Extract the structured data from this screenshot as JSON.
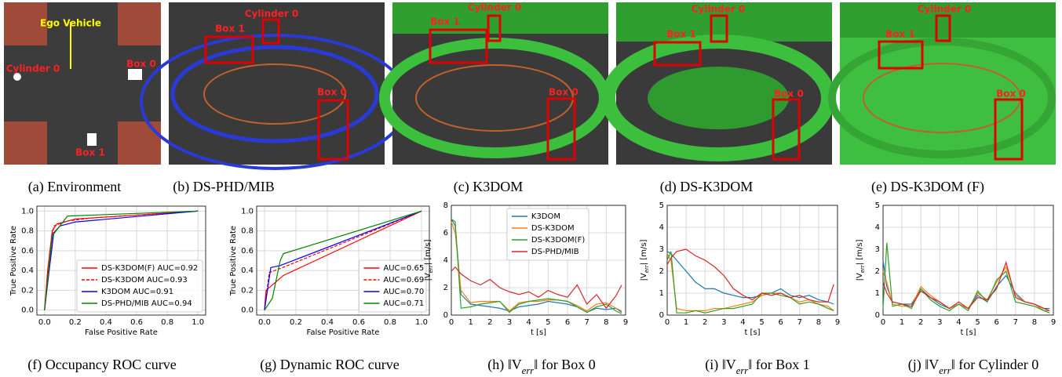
{
  "images": [
    {
      "caption": "(a) Environment",
      "labels": [
        "Ego Vehicle",
        "Box 0",
        "Cylinder 0",
        "Box 1"
      ]
    },
    {
      "caption": "(b) DS-PHD/MIB",
      "labels": [
        "Box 1",
        "Cylinder 0",
        "Box 0"
      ]
    },
    {
      "caption": "(c) K3DOM",
      "labels": [
        "Box 1",
        "Cylinder 0",
        "Box 0"
      ]
    },
    {
      "caption": "(d) DS-K3DOM",
      "labels": [
        "Box 1",
        "Cylinder 0",
        "Box 0"
      ]
    },
    {
      "caption": "(e) DS-K3DOM (F)",
      "labels": [
        "Box 1",
        "Cylinder 0",
        "Box 0"
      ]
    }
  ],
  "chart_data": [
    {
      "type": "line",
      "caption": [
        "(f) Occupancy ROC curve"
      ],
      "xlabel": "False Positive Rate",
      "ylabel": [
        "True Positive Rate"
      ],
      "xlim": [
        -0.05,
        1.05
      ],
      "ylim": [
        -0.05,
        1.05
      ],
      "xticks": [
        {
          "value": 0,
          "label": "0.0"
        },
        0.2,
        0.4,
        0.6,
        0.8,
        {
          "value": 1,
          "label": "1.0"
        }
      ],
      "yticks": [
        {
          "value": 0,
          "label": "0.0"
        },
        0.2,
        0.4,
        0.6,
        0.8,
        {
          "value": 1,
          "label": "1.0"
        }
      ],
      "grid": true,
      "legend": "lower-right",
      "series": [
        {
          "name": "DS-K3DOM(F) AUC=0.92",
          "color": "#ff0000",
          "linestyle": "solid",
          "x": [
            0,
            0.02,
            0.05,
            0.08,
            0.2,
            1
          ],
          "values": [
            0,
            0.4,
            0.8,
            0.87,
            0.92,
            1
          ]
        },
        {
          "name": "DS-K3DOM AUC=0.93",
          "color": "#ff0000",
          "linestyle": "dashed",
          "x": [
            0,
            0.03,
            0.06,
            0.15,
            0.3,
            1
          ],
          "values": [
            0,
            0.5,
            0.85,
            0.9,
            0.93,
            1
          ]
        },
        {
          "name": "K3DOM AUC=0.91",
          "color": "#0000ff",
          "linestyle": "solid",
          "x": [
            0,
            0.03,
            0.06,
            0.1,
            0.2,
            1
          ],
          "values": [
            0,
            0.4,
            0.78,
            0.85,
            0.89,
            1
          ]
        },
        {
          "name": "DS-PHD/MIB AUC=0.94",
          "color": "#008000",
          "linestyle": "solid",
          "x": [
            0,
            0.02,
            0.05,
            0.15,
            1
          ],
          "values": [
            0,
            0.3,
            0.75,
            0.95,
            1
          ]
        }
      ]
    },
    {
      "type": "line",
      "caption": [
        "(g) Dynamic ROC curve"
      ],
      "xlabel": "False Positive Rate",
      "ylabel": [
        "True Positive Rate"
      ],
      "xlim": [
        -0.05,
        1.05
      ],
      "ylim": [
        -0.05,
        1.05
      ],
      "xticks": [
        {
          "value": 0,
          "label": "0.0"
        },
        0.2,
        0.4,
        0.6,
        0.8,
        {
          "value": 1,
          "label": "1.0"
        }
      ],
      "yticks": [
        {
          "value": 0,
          "label": "0.0"
        },
        0.2,
        0.4,
        0.6,
        0.8,
        {
          "value": 1,
          "label": "1.0"
        }
      ],
      "grid": true,
      "legend": "lower-right",
      "series": [
        {
          "name": "AUC=0.65",
          "color": "#ff0000",
          "linestyle": "solid",
          "x": [
            0,
            0.01,
            0.12,
            1
          ],
          "values": [
            0,
            0.2,
            0.35,
            1
          ]
        },
        {
          "name": "AUC=0.69",
          "color": "#ff0000",
          "linestyle": "dashed",
          "x": [
            0,
            0.03,
            0.1,
            1
          ],
          "values": [
            0,
            0.38,
            0.42,
            1
          ]
        },
        {
          "name": "AUC=0.70",
          "color": "#0000ff",
          "linestyle": "solid",
          "x": [
            0,
            0.04,
            0.1,
            1
          ],
          "values": [
            0,
            0.43,
            0.45,
            1
          ]
        },
        {
          "name": "AUC=0.71",
          "color": "#008000",
          "linestyle": "solid",
          "x": [
            0,
            0.05,
            0.1,
            0.12,
            1
          ],
          "values": [
            0,
            0.12,
            0.5,
            0.57,
            1
          ]
        }
      ]
    },
    {
      "type": "line",
      "caption": [
        "(h) ‖V",
        "err",
        "‖ for Box 0"
      ],
      "xlabel": "t [s]",
      "ylabel": [
        "|V",
        "err",
        "| [m/s]"
      ],
      "xlim": [
        0,
        9
      ],
      "ylim": [
        0,
        8
      ],
      "xticks": [
        0,
        1,
        2,
        3,
        4,
        5,
        6,
        7,
        8,
        9
      ],
      "yticks": [
        0,
        2,
        4,
        6,
        8
      ],
      "grid": true,
      "legend": "upper-center",
      "x": [
        0,
        0.2,
        0.5,
        1,
        1.5,
        2,
        2.5,
        3,
        3.5,
        4,
        4.5,
        5,
        5.5,
        6,
        6.5,
        7,
        7.5,
        8,
        8.5,
        8.8
      ],
      "series": [
        {
          "name": "K3DOM",
          "color": "#1f77b4",
          "values": [
            7,
            6.5,
            1.5,
            0.8,
            0.7,
            0.6,
            0.5,
            0.3,
            0.6,
            0.7,
            0.8,
            1.0,
            0.9,
            0.8,
            0.6,
            0.2,
            0.5,
            0.4,
            0.5,
            0.2
          ]
        },
        {
          "name": "DS-K3DOM",
          "color": "#ff7f0e",
          "values": [
            6.8,
            6,
            1.8,
            0.9,
            1,
            1,
            1,
            0.3,
            0.9,
            1,
            1,
            1.1,
            1.1,
            1,
            0.7,
            0.3,
            0.8,
            0.9,
            0.5,
            0.3
          ]
        },
        {
          "name": "DS-K3DOM(F)",
          "color": "#2ca02c",
          "values": [
            7,
            6.8,
            0.5,
            0.6,
            0.8,
            0.9,
            1,
            0.2,
            0.8,
            1,
            1.1,
            1.2,
            1.1,
            1,
            0.6,
            0.2,
            0.6,
            0.8,
            0.3,
            0.1
          ]
        },
        {
          "name": "DS-PHD/MIB",
          "color": "#d62728",
          "values": [
            3.2,
            3.5,
            3,
            2.5,
            2.2,
            2.6,
            2,
            1.7,
            1.5,
            1.7,
            1.3,
            1.8,
            1.5,
            1.3,
            2.2,
            0.8,
            1.5,
            0.5,
            1.4,
            2.2
          ]
        }
      ]
    },
    {
      "type": "line",
      "caption": [
        "(i) ‖V",
        "err",
        "‖ for Box 1"
      ],
      "xlabel": "t [s]",
      "ylabel": [
        "|V",
        "err",
        "| [m/s]"
      ],
      "xlim": [
        0,
        9
      ],
      "ylim": [
        0,
        5
      ],
      "xticks": [
        0,
        1,
        2,
        3,
        4,
        5,
        6,
        7,
        8,
        9
      ],
      "yticks": [
        0,
        1,
        2,
        3,
        4,
        5
      ],
      "grid": true,
      "x": [
        0,
        0.2,
        0.5,
        1,
        1.5,
        2,
        2.5,
        3,
        3.5,
        4,
        4.5,
        5,
        5.5,
        6,
        6.5,
        7,
        7.5,
        8,
        8.5,
        8.8
      ],
      "series": [
        {
          "color": "#1f77b4",
          "values": [
            2.9,
            2.8,
            2.5,
            2.0,
            1.5,
            1.2,
            1.2,
            1.0,
            0.9,
            0.8,
            0.8,
            0.9,
            1.0,
            1.2,
            0.9,
            0.8,
            0.9,
            0.7,
            0.6,
            0.5
          ]
        },
        {
          "color": "#ff7f0e",
          "values": [
            2.8,
            2.5,
            0.3,
            0.2,
            0.2,
            0.2,
            0.3,
            0.3,
            0.4,
            0.5,
            0.6,
            0.9,
            1.0,
            1.0,
            0.8,
            0.6,
            0.7,
            0.5,
            0.4,
            0.2
          ]
        },
        {
          "color": "#2ca02c",
          "values": [
            2.5,
            2.9,
            0.1,
            0.1,
            0.2,
            0.1,
            0.2,
            0.3,
            0.3,
            0.4,
            0.5,
            1.0,
            1.0,
            0.9,
            0.8,
            0.5,
            0.6,
            0.5,
            0.3,
            0.2
          ]
        },
        {
          "color": "#d62728",
          "values": [
            2.3,
            2.6,
            2.9,
            3.0,
            2.7,
            2.5,
            2.2,
            1.8,
            1.2,
            0.9,
            0.7,
            1.0,
            0.9,
            1.0,
            0.8,
            0.9,
            0.7,
            0.6,
            0.6,
            1.4
          ]
        }
      ]
    },
    {
      "type": "line",
      "caption": [
        "(j) ‖V",
        "err",
        "‖ for Cylinder 0"
      ],
      "xlabel": "t [s]",
      "ylabel": [
        "|V",
        "err",
        "| [m/s]"
      ],
      "xlim": [
        0,
        9
      ],
      "ylim": [
        0,
        5
      ],
      "xticks": [
        0,
        1,
        2,
        3,
        4,
        5,
        6,
        7,
        8,
        9
      ],
      "yticks": [
        0,
        1,
        2,
        3,
        4,
        5
      ],
      "grid": true,
      "x": [
        0,
        0.2,
        0.5,
        1,
        1.5,
        2,
        2.5,
        3,
        3.5,
        4,
        4.5,
        5,
        5.5,
        6,
        6.5,
        7,
        7.5,
        8,
        8.5,
        8.8
      ],
      "series": [
        {
          "color": "#1f77b4",
          "values": [
            2.5,
            1.3,
            0.6,
            0.5,
            0.5,
            1.2,
            0.8,
            0.5,
            0.3,
            0.5,
            0.3,
            0.9,
            0.6,
            1.3,
            1.8,
            1.0,
            0.6,
            0.5,
            0.3,
            0.3
          ]
        },
        {
          "color": "#ff7f0e",
          "values": [
            2.0,
            1.5,
            0.5,
            0.4,
            0.4,
            1.3,
            0.9,
            0.6,
            0.3,
            0.5,
            0.3,
            1.0,
            0.7,
            1.5,
            2.2,
            0.9,
            0.6,
            0.5,
            0.2,
            0.2
          ]
        },
        {
          "color": "#2ca02c",
          "values": [
            0.3,
            3.3,
            0.4,
            0.5,
            0.3,
            1.2,
            0.7,
            0.4,
            0.2,
            0.5,
            0.2,
            1.1,
            0.6,
            1.6,
            2.0,
            0.6,
            0.5,
            0.4,
            0.2,
            0.1
          ]
        },
        {
          "color": "#d62728",
          "values": [
            1.5,
            1.0,
            0.6,
            0.5,
            0.4,
            1.1,
            0.8,
            0.6,
            0.3,
            0.6,
            0.3,
            0.8,
            0.7,
            1.2,
            2.4,
            0.8,
            0.6,
            0.5,
            0.3,
            0.2
          ]
        }
      ]
    }
  ]
}
